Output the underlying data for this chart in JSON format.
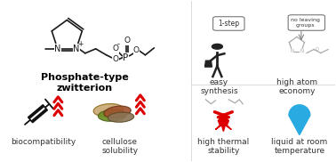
{
  "bg_color": "#ffffff",
  "title": "Phosphate-type\nzwitterion",
  "labels_top": [
    "easy\nsynthesis",
    "high atom\neconomy"
  ],
  "labels_bottom": [
    "biocompatibility",
    "cellulose\nsolubility",
    "high thermal\nstability",
    "liquid at room\ntemperature"
  ],
  "label_fontsize": 6.5,
  "title_fontsize": 8,
  "red_color": "#dd0000",
  "blue_color": "#29abe2",
  "text_color": "#333333",
  "gray_color": "#999999",
  "struct_color": "#333333"
}
